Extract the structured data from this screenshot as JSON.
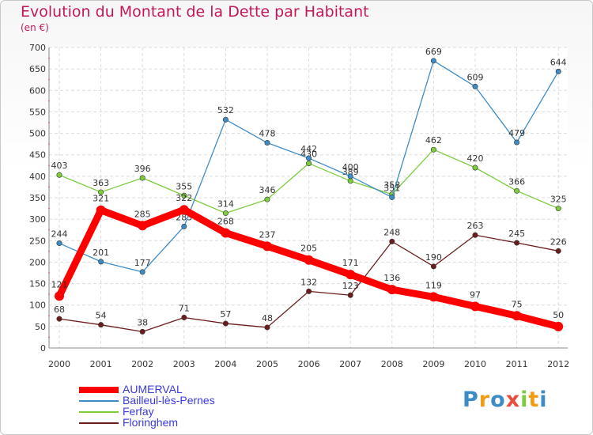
{
  "title": "Evolution du Montant de la Dette par Habitant",
  "subtitle": "(en €)",
  "logo": "Proxiti",
  "chart_data": {
    "type": "line",
    "x": [
      "2000",
      "2001",
      "2002",
      "2003",
      "2004",
      "2005",
      "2006",
      "2007",
      "2008",
      "2009",
      "2010",
      "2011",
      "2012"
    ],
    "ylim": [
      0,
      700
    ],
    "yticks": [
      0,
      50,
      100,
      150,
      200,
      250,
      300,
      350,
      400,
      450,
      500,
      550,
      600,
      650,
      700
    ],
    "grid": true,
    "legend_position": "bottom-left",
    "series": [
      {
        "name": "AUMERVAL",
        "color": "#ff0000",
        "values": [
          121,
          321,
          285,
          322,
          268,
          237,
          205,
          171,
          136,
          119,
          97,
          75,
          50
        ]
      },
      {
        "name": "Bailleul-lès-Pernes",
        "color": "#3d8cc6",
        "values": [
          244,
          201,
          177,
          283,
          532,
          478,
          442,
          400,
          351,
          669,
          609,
          479,
          644
        ]
      },
      {
        "name": "Ferfay",
        "color": "#7ccc3b",
        "values": [
          403,
          363,
          396,
          355,
          314,
          346,
          430,
          389,
          358,
          462,
          420,
          366,
          325
        ]
      },
      {
        "name": "Floringhem",
        "color": "#6b1c1c",
        "values": [
          68,
          54,
          38,
          71,
          57,
          48,
          132,
          123,
          248,
          190,
          263,
          245,
          226
        ]
      }
    ]
  }
}
